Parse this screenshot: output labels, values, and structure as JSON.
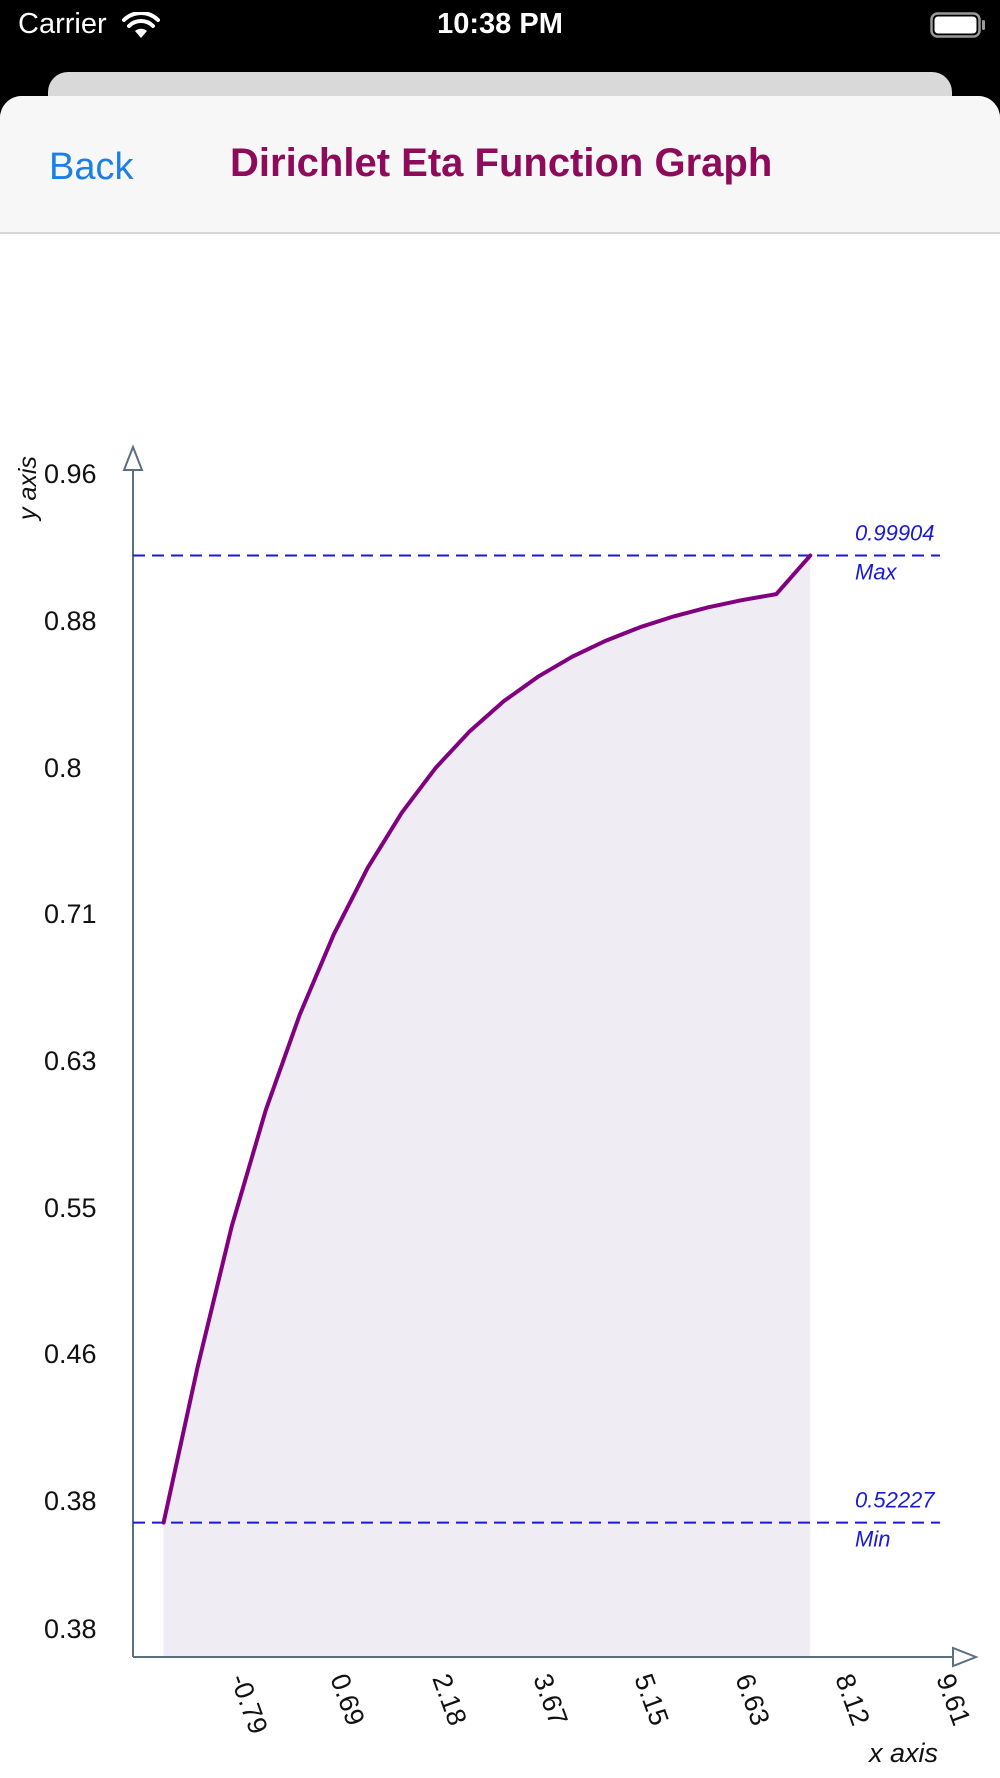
{
  "status_bar": {
    "carrier": "Carrier",
    "time": "10:38 PM",
    "icons": [
      "wifi-icon",
      "battery-icon"
    ]
  },
  "nav": {
    "back_label": "Back",
    "title": "Dirichlet Eta Function Graph"
  },
  "colors": {
    "title": "#8e0a5a",
    "back": "#1d7ee5",
    "curve": "#800080",
    "fill": "#f0ecf3",
    "guide": "#1a1ad6",
    "axis": "#5a7080"
  },
  "chart_data": {
    "type": "area",
    "title": "",
    "xlabel": "x axis",
    "ylabel": "y axis",
    "x_tick_labels": [
      "-0.79",
      "0.69",
      "2.18",
      "3.67",
      "5.15",
      "6.63",
      "8.12",
      "9.61"
    ],
    "y_tick_labels": [
      "0.96",
      "0.88",
      "0.8",
      "0.71",
      "0.63",
      "0.55",
      "0.46",
      "0.38",
      "0.38"
    ],
    "xlim": [
      -1.45,
      10.45
    ],
    "ylim": [
      0.456,
      1.056
    ],
    "series": [
      {
        "x": [
          -1.0,
          -0.5,
          0.0,
          0.5,
          1.0,
          1.5,
          2.0,
          2.5,
          3.0,
          3.5,
          4.0,
          4.5,
          5.0,
          5.5,
          6.0,
          6.5,
          7.0,
          7.5,
          8.0,
          8.5
        ],
        "y": [
          0.52227,
          0.5991,
          0.6683,
          0.7256,
          0.7727,
          0.8123,
          0.8452,
          0.8723,
          0.8945,
          0.9125,
          0.9273,
          0.9393,
          0.9491,
          0.9571,
          0.9637,
          0.9691,
          0.9735,
          0.9771,
          0.98,
          0.99904
        ]
      }
    ],
    "reference_lines": [
      {
        "value": 0.99904,
        "value_label": "0.99904",
        "label": "Max"
      },
      {
        "value": 0.52227,
        "value_label": "0.52227",
        "label": "Min"
      }
    ]
  }
}
